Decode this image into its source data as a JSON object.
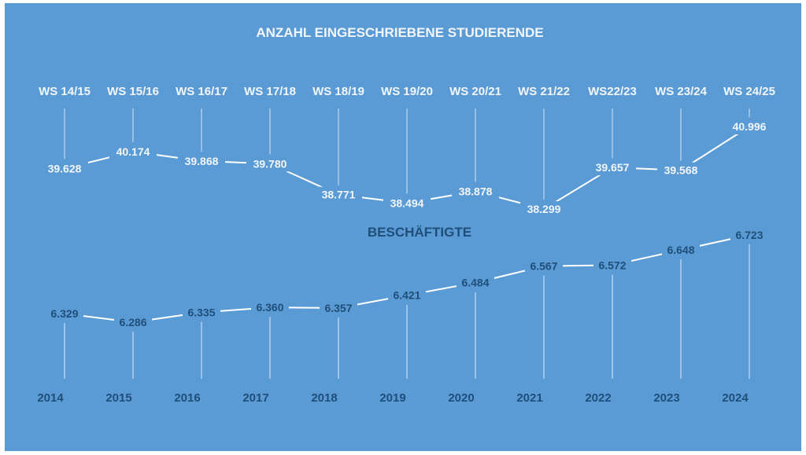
{
  "colors": {
    "background": "#5b9bd5",
    "light_text": "#f2f6fb",
    "dark_text": "#1f4e79",
    "line": "#ffffff"
  },
  "chart_data": [
    {
      "type": "line",
      "title": "ANZAHL EINGESCHRIEBENE STUDIERENDE",
      "categories": [
        "WS 14/15",
        "WS 15/16",
        "WS 16/17",
        "WS 17/18",
        "WS 18/19",
        "WS 19/20",
        "WS 20/21",
        "WS 21/22",
        "WS22/23",
        "WS 23/24",
        "WS 24/25"
      ],
      "values": [
        39628,
        40174,
        39868,
        39780,
        38771,
        38494,
        38878,
        38299,
        39657,
        39568,
        40996
      ],
      "value_labels": [
        "39.628",
        "40.174",
        "39.868",
        "39.780",
        "38.771",
        "38.494",
        "38.878",
        "38.299",
        "39.657",
        "39.568",
        "40.996"
      ],
      "axis_position": "top",
      "grid": false,
      "legend": "none"
    },
    {
      "type": "line",
      "title": "BESCHÄFTIGTE",
      "categories": [
        "2014",
        "2015",
        "2016",
        "2017",
        "2018",
        "2019",
        "2020",
        "2021",
        "2022",
        "2023",
        "2024"
      ],
      "values": [
        6329,
        6286,
        6335,
        6360,
        6357,
        6421,
        6484,
        6567,
        6572,
        6648,
        6723
      ],
      "value_labels": [
        "6.329",
        "6.286",
        "6.335",
        "6.360",
        "6.357",
        "6.421",
        "6.484",
        "6.567",
        "6.572",
        "6.648",
        "6.723"
      ],
      "axis_position": "bottom",
      "grid": false,
      "legend": "none"
    }
  ]
}
